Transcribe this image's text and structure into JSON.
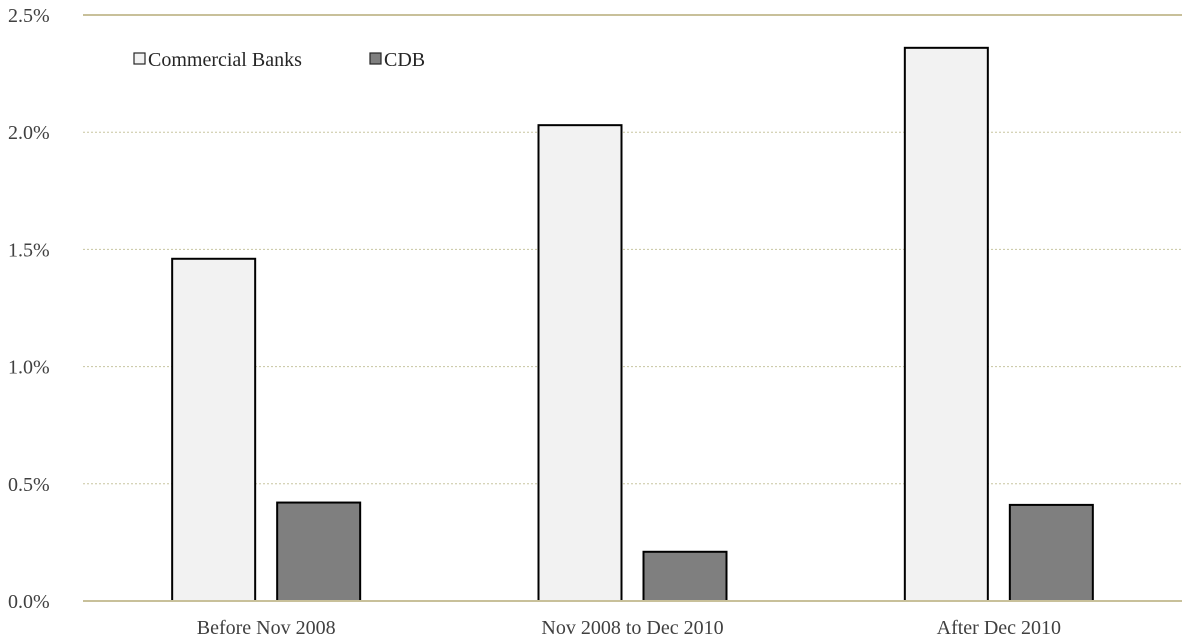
{
  "chart_data": {
    "type": "bar",
    "title": "",
    "xlabel": "",
    "ylabel": "",
    "categories": [
      "Before Nov 2008",
      "Nov 2008 to Dec 2010",
      "After Dec 2010"
    ],
    "series": [
      {
        "name": "Commercial Banks",
        "values": [
          1.46,
          2.03,
          2.36
        ],
        "color": "#f2f2f2"
      },
      {
        "name": "CDB",
        "values": [
          0.42,
          0.21,
          0.41
        ],
        "color": "#7f7f7f"
      }
    ],
    "ylim": [
      0,
      2.5
    ],
    "yticks": [
      0.0,
      0.5,
      1.0,
      1.5,
      2.0,
      2.5
    ],
    "ytick_labels": [
      "0.0%",
      "0.5%",
      "1.0%",
      "1.5%",
      "2.0%",
      "2.5%"
    ],
    "grid": true,
    "legend_position": "top-left"
  }
}
